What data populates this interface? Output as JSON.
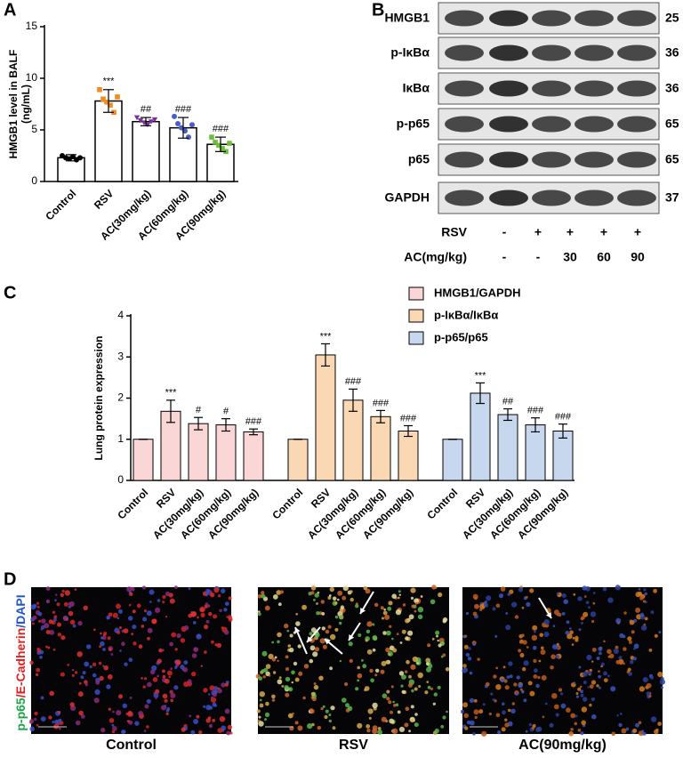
{
  "panel_labels": [
    "A",
    "B",
    "C",
    "D"
  ],
  "chart_data": [
    {
      "type": "bar_points",
      "y_label": [
        "HMGB1 level in BALF",
        "(ng/mL)"
      ],
      "categories": [
        "Control",
        "RSV",
        "AC(30mg/kg)",
        "AC(60mg/kg)",
        "AC(90mg/kg)"
      ],
      "values": [
        2.3,
        7.8,
        5.8,
        5.2,
        3.6
      ],
      "errors": [
        0.3,
        1.1,
        0.4,
        1.0,
        0.7
      ],
      "annotations": [
        null,
        "***",
        "##",
        "###",
        "###"
      ],
      "bar_color": "#ffffff",
      "point_colors": [
        "#000000",
        "#f28c1e",
        "#7a2f9b",
        "#4a5fc1",
        "#6abf3a"
      ],
      "points": [
        [
          2.5,
          2.3,
          2.2,
          2.4,
          2.1,
          2.3
        ],
        [
          8.9,
          8.0,
          7.7,
          7.4,
          6.7,
          8.2
        ],
        [
          6.2,
          5.9,
          5.7,
          5.5,
          5.8,
          6.0
        ],
        [
          6.3,
          5.6,
          5.2,
          4.9,
          4.3,
          5.5
        ],
        [
          4.3,
          3.8,
          3.5,
          3.2,
          2.9,
          3.7
        ]
      ],
      "ylim": [
        0,
        15
      ],
      "yticks": [
        0,
        5,
        10,
        15
      ]
    },
    {
      "type": "grouped_bar",
      "y_label": "Lung protein expression",
      "categories": [
        "Control",
        "RSV",
        "AC(30mg/kg)",
        "AC(60mg/kg)",
        "AC(90mg/kg)"
      ],
      "series": [
        {
          "name": "HMGB1/GAPDH",
          "color": "#fad6d6",
          "values": [
            1.0,
            1.68,
            1.38,
            1.35,
            1.18
          ],
          "errors": [
            0,
            0.27,
            0.15,
            0.15,
            0.07
          ],
          "annotations": [
            null,
            "***",
            "#",
            "#",
            "###"
          ]
        },
        {
          "name": "p-IκBα/IκBα",
          "color": "#fbd8b4",
          "values": [
            1.0,
            3.05,
            1.95,
            1.55,
            1.2
          ],
          "errors": [
            0,
            0.27,
            0.27,
            0.15,
            0.13
          ],
          "annotations": [
            null,
            "***",
            "###",
            "###",
            "###"
          ]
        },
        {
          "name": "p-p65/p65",
          "color": "#c6d7ee",
          "values": [
            1.0,
            2.12,
            1.6,
            1.35,
            1.2
          ],
          "errors": [
            0,
            0.25,
            0.14,
            0.17,
            0.17
          ],
          "annotations": [
            null,
            "***",
            "##",
            "###",
            "###"
          ]
        }
      ],
      "ylim": [
        0,
        4
      ],
      "yticks": [
        0,
        1,
        2,
        3,
        4
      ],
      "legend": "top-right"
    }
  ],
  "blot": {
    "proteins": [
      "HMGB1",
      "p-IκBα",
      "IκBα",
      "p-p65",
      "p65",
      "GAPDH"
    ],
    "kda": [
      "25",
      "36",
      "36",
      "65",
      "65",
      "37"
    ],
    "conditions": [
      {
        "label": "RSV",
        "lanes": [
          "-",
          "+",
          "+",
          "+",
          "+"
        ]
      },
      {
        "label": "AC(mg/kg)",
        "lanes": [
          "-",
          "-",
          "30",
          "60",
          "90"
        ]
      }
    ]
  },
  "images": {
    "stain_label": [
      "p-p65",
      "/E-Cadherin",
      "/DAPI"
    ],
    "captions": [
      "Control",
      "RSV",
      "AC(90mg/kg)"
    ]
  }
}
